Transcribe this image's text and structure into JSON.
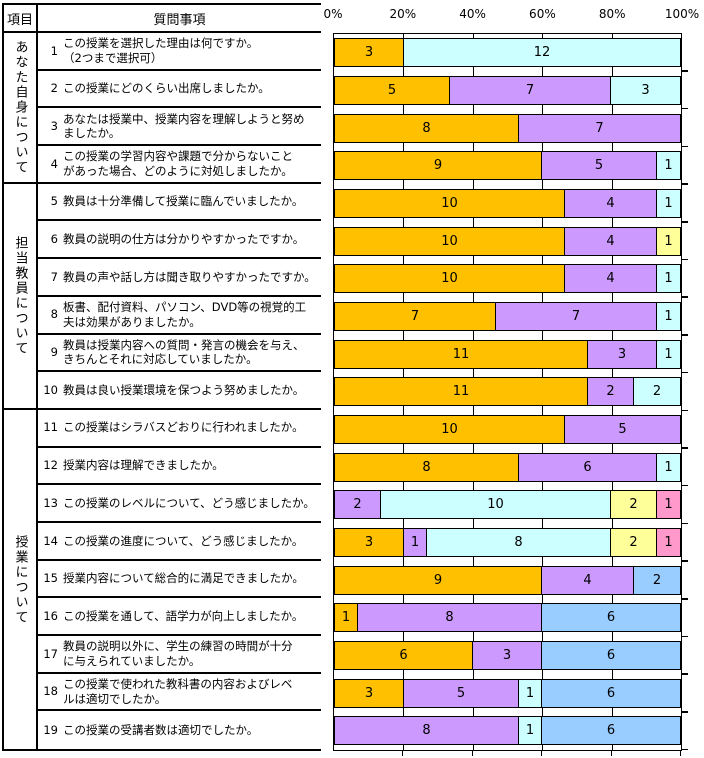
{
  "table": {
    "item_header": "項目",
    "question_header": "質問事項",
    "groups": [
      {
        "label": "あなた自身について",
        "questions": [
          {
            "num": "1",
            "text": "この授業を選択した理由は何ですか。\n（2つまで選択可）"
          },
          {
            "num": "2",
            "text": "この授業にどのくらい出席しましたか。"
          },
          {
            "num": "3",
            "text": "あなたは授業中、授業内容を理解しようと努め\nましたか。"
          },
          {
            "num": "4",
            "text": "この授業の学習内容や課題で分からないこと\nがあった場合、どのように対処しましたか。"
          }
        ]
      },
      {
        "label": "担当教員について",
        "questions": [
          {
            "num": "5",
            "text": "教員は十分準備して授業に臨んでいましたか。"
          },
          {
            "num": "6",
            "text": "教員の説明の仕方は分かりやすかったですか。"
          },
          {
            "num": "7",
            "text": "教員の声や話し方は聞き取りやすかったですか。"
          },
          {
            "num": "8",
            "text": "板書、配付資料、パソコン、DVD等の視覚的工\n夫は効果がありましたか。"
          },
          {
            "num": "9",
            "text": "教員は授業内容への質問・発言の機会を与え、\nきちんとそれに対応していましたか。"
          },
          {
            "num": "10",
            "text": "教員は良い授業環境を保つよう努めましたか。"
          }
        ]
      },
      {
        "label": "授業について",
        "questions": [
          {
            "num": "11",
            "text": "この授業はシラバスどおりに行われましたか。"
          },
          {
            "num": "12",
            "text": "授業内容は理解できましたか。"
          },
          {
            "num": "13",
            "text": "この授業のレベルについて、どう感じましたか。"
          },
          {
            "num": "14",
            "text": "この授業の進度について、どう感じましたか。"
          },
          {
            "num": "15",
            "text": "授業内容について総合的に満足できましたか。"
          },
          {
            "num": "16",
            "text": "この授業を通して、語学力が向上しましたか。"
          },
          {
            "num": "17",
            "text": "教員の説明以外に、学生の練習の時間が十分\nに与えられていましたか。"
          },
          {
            "num": "18",
            "text": "この授業で使われた教科書の内容およびレベ\nルは適切でしたか。"
          },
          {
            "num": "19",
            "text": "この授業の受講者数は適切でしたか。"
          }
        ]
      }
    ]
  },
  "chart_data": {
    "type": "bar",
    "stacked": true,
    "orientation": "horizontal",
    "total": 15,
    "x_ticks": [
      "0%",
      "20%",
      "40%",
      "60%",
      "80%",
      "100%"
    ],
    "x_range_percent": [
      0,
      100
    ],
    "grid": true,
    "colors": {
      "gold": "#FFC000",
      "purple": "#CC99FF",
      "cyan": "#CCFFFF",
      "yellow": "#FFFF99",
      "pink": "#FF99CC",
      "blue": "#99CCFF"
    },
    "bars": [
      {
        "row": "1",
        "segments": [
          {
            "value": 3,
            "color": "gold"
          },
          {
            "value": 12,
            "color": "cyan"
          }
        ]
      },
      {
        "row": "2",
        "segments": [
          {
            "value": 5,
            "color": "gold"
          },
          {
            "value": 7,
            "color": "purple"
          },
          {
            "value": 3,
            "color": "cyan"
          }
        ]
      },
      {
        "row": "3",
        "segments": [
          {
            "value": 8,
            "color": "gold"
          },
          {
            "value": 7,
            "color": "purple"
          }
        ]
      },
      {
        "row": "4",
        "segments": [
          {
            "value": 9,
            "color": "gold"
          },
          {
            "value": 5,
            "color": "purple"
          },
          {
            "value": 1,
            "color": "cyan"
          }
        ]
      },
      {
        "row": "5",
        "segments": [
          {
            "value": 10,
            "color": "gold"
          },
          {
            "value": 4,
            "color": "purple"
          },
          {
            "value": 1,
            "color": "cyan"
          }
        ]
      },
      {
        "row": "6",
        "segments": [
          {
            "value": 10,
            "color": "gold"
          },
          {
            "value": 4,
            "color": "purple"
          },
          {
            "value": 1,
            "color": "yellow"
          }
        ]
      },
      {
        "row": "7",
        "segments": [
          {
            "value": 10,
            "color": "gold"
          },
          {
            "value": 4,
            "color": "purple"
          },
          {
            "value": 1,
            "color": "cyan"
          }
        ]
      },
      {
        "row": "8",
        "segments": [
          {
            "value": 7,
            "color": "gold"
          },
          {
            "value": 7,
            "color": "purple"
          },
          {
            "value": 1,
            "color": "cyan"
          }
        ]
      },
      {
        "row": "9",
        "segments": [
          {
            "value": 11,
            "color": "gold"
          },
          {
            "value": 3,
            "color": "purple"
          },
          {
            "value": 1,
            "color": "cyan"
          }
        ]
      },
      {
        "row": "10",
        "segments": [
          {
            "value": 11,
            "color": "gold"
          },
          {
            "value": 2,
            "color": "purple"
          },
          {
            "value": 2,
            "color": "cyan"
          }
        ]
      },
      {
        "row": "11",
        "segments": [
          {
            "value": 10,
            "color": "gold"
          },
          {
            "value": 5,
            "color": "purple"
          }
        ]
      },
      {
        "row": "12",
        "segments": [
          {
            "value": 8,
            "color": "gold"
          },
          {
            "value": 6,
            "color": "purple"
          },
          {
            "value": 1,
            "color": "cyan"
          }
        ]
      },
      {
        "row": "13",
        "segments": [
          {
            "value": 2,
            "color": "purple"
          },
          {
            "value": 10,
            "color": "cyan"
          },
          {
            "value": 2,
            "color": "yellow"
          },
          {
            "value": 1,
            "color": "pink"
          }
        ]
      },
      {
        "row": "14",
        "segments": [
          {
            "value": 3,
            "color": "gold"
          },
          {
            "value": 1,
            "color": "purple"
          },
          {
            "value": 8,
            "color": "cyan"
          },
          {
            "value": 2,
            "color": "yellow"
          },
          {
            "value": 1,
            "color": "pink"
          }
        ]
      },
      {
        "row": "15",
        "segments": [
          {
            "value": 9,
            "color": "gold"
          },
          {
            "value": 4,
            "color": "purple"
          },
          {
            "value": 2,
            "color": "blue"
          }
        ]
      },
      {
        "row": "16",
        "segments": [
          {
            "value": 1,
            "color": "gold"
          },
          {
            "value": 8,
            "color": "purple"
          },
          {
            "value": 6,
            "color": "blue"
          }
        ]
      },
      {
        "row": "17",
        "segments": [
          {
            "value": 6,
            "color": "gold"
          },
          {
            "value": 3,
            "color": "purple"
          },
          {
            "value": 6,
            "color": "blue"
          }
        ]
      },
      {
        "row": "18",
        "segments": [
          {
            "value": 3,
            "color": "gold"
          },
          {
            "value": 5,
            "color": "purple"
          },
          {
            "value": 1,
            "color": "cyan"
          },
          {
            "value": 6,
            "color": "blue"
          }
        ]
      },
      {
        "row": "19",
        "segments": [
          {
            "value": 8,
            "color": "purple"
          },
          {
            "value": 1,
            "color": "cyan"
          },
          {
            "value": 6,
            "color": "blue"
          }
        ]
      }
    ]
  }
}
